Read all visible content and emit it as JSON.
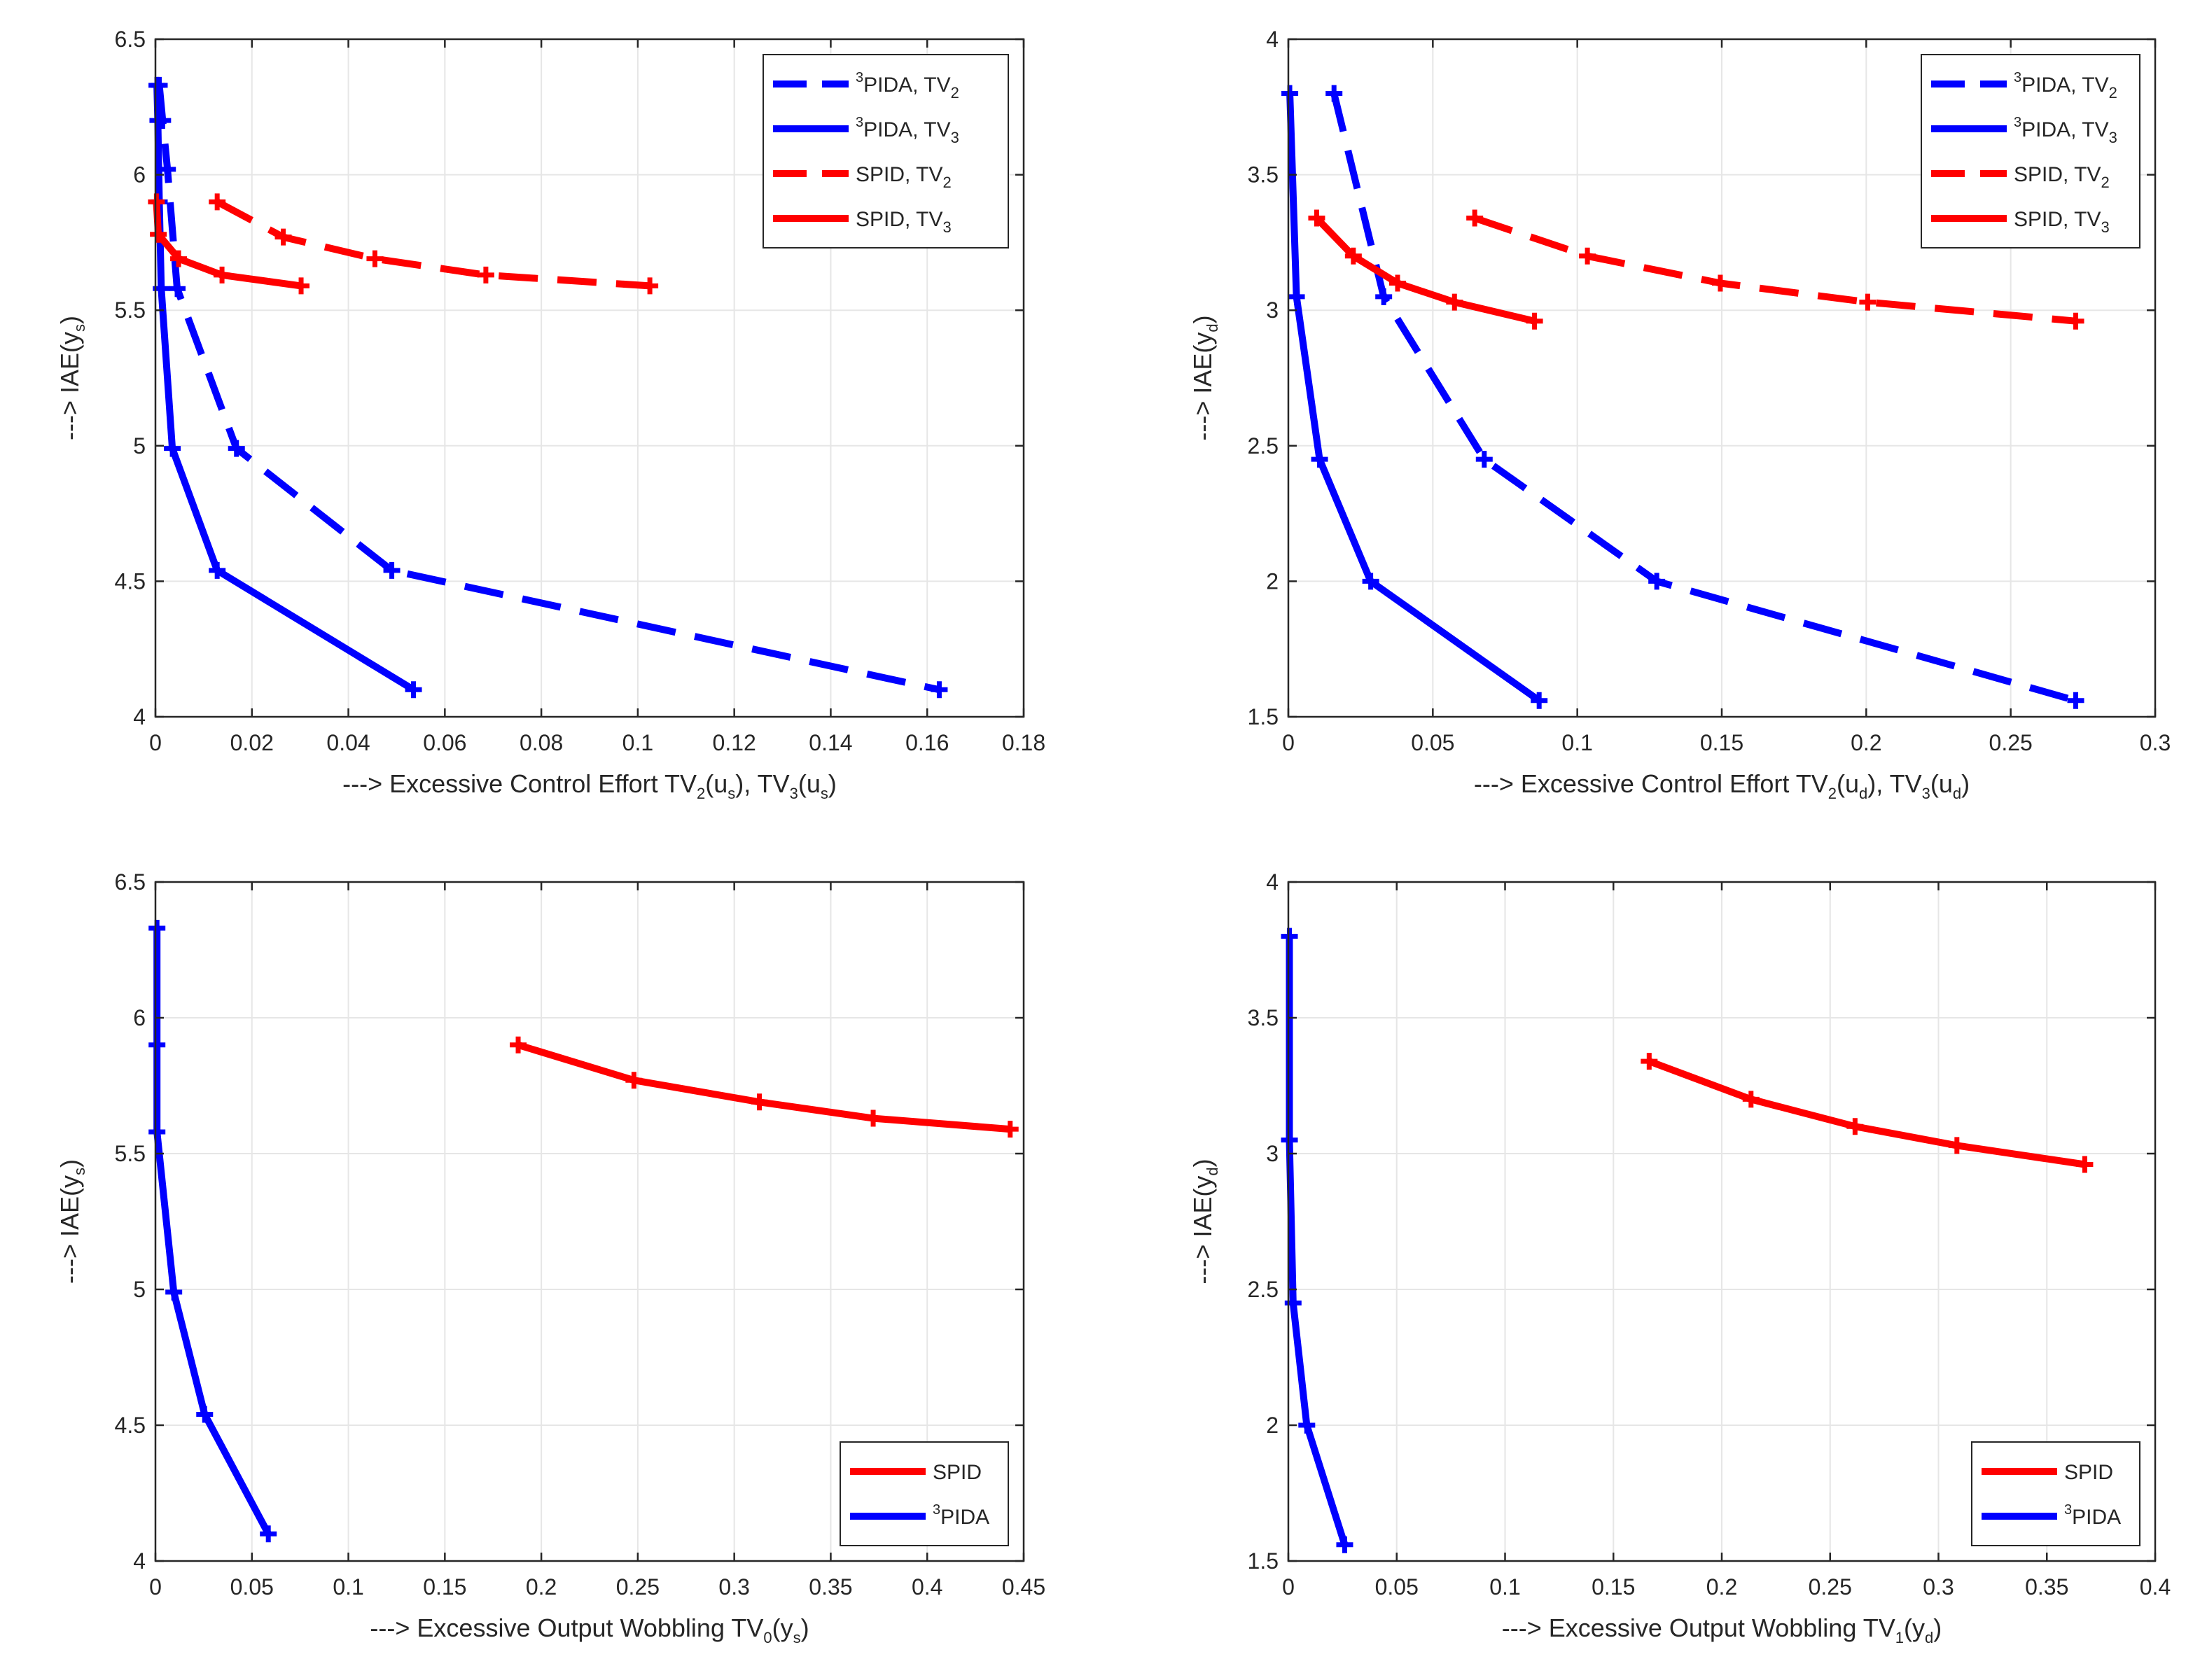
{
  "figure": {
    "colors": {
      "blue": "#0000ff",
      "red": "#ff0000",
      "grid": "#e6e6e6",
      "axis": "#262626"
    }
  },
  "chart_data": [
    {
      "id": "top-left",
      "type": "line",
      "xlabel": {
        "prefix": "---> Excessive Control Effort TV",
        "parts": [
          [
            "2",
            "sub"
          ],
          [
            "(u",
            "n"
          ],
          [
            "s",
            "sub"
          ],
          [
            "), TV",
            "n"
          ],
          [
            "3",
            "sub"
          ],
          [
            "(u",
            "n"
          ],
          [
            "s",
            "sub"
          ],
          [
            ")",
            "n"
          ]
        ]
      },
      "ylabel": {
        "prefix": "---> IAE(y",
        "parts": [
          [
            "s",
            "sub"
          ],
          [
            ")",
            "n"
          ]
        ]
      },
      "xlim": [
        0,
        0.18
      ],
      "ylim": [
        4,
        6.5
      ],
      "xticks": [
        0,
        0.02,
        0.04,
        0.06,
        0.08,
        0.1,
        0.12,
        0.14,
        0.16,
        0.18
      ],
      "xtick_labels": [
        "0",
        "0.02",
        "0.04",
        "0.06",
        "0.08",
        "0.1",
        "0.12",
        "0.14",
        "0.16",
        "0.18"
      ],
      "yticks": [
        4,
        4.5,
        5,
        5.5,
        6,
        6.5
      ],
      "ytick_labels": [
        "4",
        "4.5",
        "5",
        "5.5",
        "6",
        "6.5"
      ],
      "legend": "top-right",
      "series": [
        {
          "name": "3PIDA, TV2",
          "label": [
            [
              "3",
              "sup"
            ],
            [
              "PIDA, TV",
              "n"
            ],
            [
              "2",
              "sub"
            ]
          ],
          "color": "#0000ff",
          "dash": true,
          "x": [
            0.0008,
            0.0015,
            0.0025,
            0.0045,
            0.0168,
            0.049,
            0.1625
          ],
          "y": [
            6.33,
            6.2,
            6.02,
            5.58,
            4.99,
            4.54,
            4.1
          ]
        },
        {
          "name": "3PIDA, TV3",
          "label": [
            [
              "3",
              "sup"
            ],
            [
              "PIDA, TV",
              "n"
            ],
            [
              "3",
              "sub"
            ]
          ],
          "color": "#0000ff",
          "dash": false,
          "x": [
            0.0003,
            0.0005,
            0.0008,
            0.0012,
            0.0035,
            0.0128,
            0.0535
          ],
          "y": [
            6.33,
            6.2,
            5.9,
            5.58,
            4.99,
            4.54,
            4.1
          ]
        },
        {
          "name": "SPID, TV2",
          "label": [
            [
              "SPID, TV",
              "n"
            ],
            [
              "2",
              "sub"
            ]
          ],
          "color": "#ff0000",
          "dash": true,
          "x": [
            0.0128,
            0.0265,
            0.0455,
            0.0685,
            0.1025
          ],
          "y": [
            5.9,
            5.77,
            5.69,
            5.63,
            5.59
          ]
        },
        {
          "name": "SPID, TV3",
          "label": [
            [
              "SPID, TV",
              "n"
            ],
            [
              "3",
              "sub"
            ]
          ],
          "color": "#ff0000",
          "dash": false,
          "x": [
            0.0002,
            0.0006,
            0.0048,
            0.0138,
            0.0302
          ],
          "y": [
            5.9,
            5.78,
            5.69,
            5.63,
            5.59
          ]
        }
      ]
    },
    {
      "id": "top-right",
      "type": "line",
      "xlabel": {
        "prefix": "---> Excessive Control Effort TV",
        "parts": [
          [
            "2",
            "sub"
          ],
          [
            "(u",
            "n"
          ],
          [
            "d",
            "sub"
          ],
          [
            "), TV",
            "n"
          ],
          [
            "3",
            "sub"
          ],
          [
            "(u",
            "n"
          ],
          [
            "d",
            "sub"
          ],
          [
            ")",
            "n"
          ]
        ]
      },
      "ylabel": {
        "prefix": "---> IAE(y",
        "parts": [
          [
            "d",
            "sub"
          ],
          [
            ")",
            "n"
          ]
        ]
      },
      "xlim": [
        0,
        0.3
      ],
      "ylim": [
        1.5,
        4
      ],
      "xticks": [
        0,
        0.05,
        0.1,
        0.15,
        0.2,
        0.25,
        0.3
      ],
      "xtick_labels": [
        "0",
        "0.05",
        "0.1",
        "0.15",
        "0.2",
        "0.25",
        "0.3"
      ],
      "yticks": [
        1.5,
        2,
        2.5,
        3,
        3.5,
        4
      ],
      "ytick_labels": [
        "1.5",
        "2",
        "2.5",
        "3",
        "3.5",
        "4"
      ],
      "legend": "top-right",
      "series": [
        {
          "name": "3PIDA, TV2",
          "label": [
            [
              "3",
              "sup"
            ],
            [
              "PIDA, TV",
              "n"
            ],
            [
              "2",
              "sub"
            ]
          ],
          "color": "#0000ff",
          "dash": true,
          "x": [
            0.0158,
            0.033,
            0.0678,
            0.1275,
            0.2725
          ],
          "y": [
            3.8,
            3.05,
            2.45,
            2.0,
            1.56
          ]
        },
        {
          "name": "3PIDA, TV3",
          "label": [
            [
              "3",
              "sup"
            ],
            [
              "PIDA, TV",
              "n"
            ],
            [
              "3",
              "sub"
            ]
          ],
          "color": "#0000ff",
          "dash": false,
          "x": [
            0.0005,
            0.0028,
            0.0108,
            0.0285,
            0.0868
          ],
          "y": [
            3.8,
            3.05,
            2.45,
            2.0,
            1.56
          ]
        },
        {
          "name": "SPID, TV2",
          "label": [
            [
              "SPID, TV",
              "n"
            ],
            [
              "2",
              "sub"
            ]
          ],
          "color": "#ff0000",
          "dash": true,
          "x": [
            0.0645,
            0.1035,
            0.1495,
            0.2005,
            0.2725
          ],
          "y": [
            3.34,
            3.2,
            3.1,
            3.03,
            2.96
          ]
        },
        {
          "name": "SPID, TV3",
          "label": [
            [
              "SPID, TV",
              "n"
            ],
            [
              "3",
              "sub"
            ]
          ],
          "color": "#ff0000",
          "dash": false,
          "x": [
            0.0098,
            0.0225,
            0.0378,
            0.0575,
            0.0852
          ],
          "y": [
            3.34,
            3.2,
            3.1,
            3.03,
            2.96
          ]
        }
      ]
    },
    {
      "id": "bottom-left",
      "type": "line",
      "xlabel": {
        "prefix": "---> Excessive Output Wobbling TV",
        "parts": [
          [
            "0",
            "sub"
          ],
          [
            "(y",
            "n"
          ],
          [
            "s",
            "sub"
          ],
          [
            ")",
            "n"
          ]
        ]
      },
      "ylabel": {
        "prefix": "---> IAE(y",
        "parts": [
          [
            "s",
            "sub"
          ],
          [
            ")",
            "n"
          ]
        ]
      },
      "xlim": [
        0,
        0.45
      ],
      "ylim": [
        4,
        6.5
      ],
      "xticks": [
        0,
        0.05,
        0.1,
        0.15,
        0.2,
        0.25,
        0.3,
        0.35,
        0.4,
        0.45
      ],
      "xtick_labels": [
        "0",
        "0.05",
        "0.1",
        "0.15",
        "0.2",
        "0.25",
        "0.3",
        "0.35",
        "0.4",
        "0.45"
      ],
      "yticks": [
        4,
        4.5,
        5,
        5.5,
        6,
        6.5
      ],
      "ytick_labels": [
        "4",
        "4.5",
        "5",
        "5.5",
        "6",
        "6.5"
      ],
      "legend": "bottom-right",
      "series": [
        {
          "name": "SPID",
          "label": [
            [
              "SPID",
              "n"
            ]
          ],
          "color": "#ff0000",
          "dash": false,
          "x": [
            0.188,
            0.248,
            0.313,
            0.372,
            0.443
          ],
          "y": [
            5.9,
            5.77,
            5.69,
            5.63,
            5.59
          ]
        },
        {
          "name": "3PIDA",
          "label": [
            [
              "3",
              "sup"
            ],
            [
              "PIDA",
              "n"
            ]
          ],
          "color": "#0000ff",
          "dash": false,
          "x": [
            0.0008,
            0.0008,
            0.0008,
            0.0095,
            0.0255,
            0.0585
          ],
          "y": [
            6.33,
            5.9,
            5.58,
            4.99,
            4.54,
            4.1
          ]
        }
      ]
    },
    {
      "id": "bottom-right",
      "type": "line",
      "xlabel": {
        "prefix": "---> Excessive Output Wobbling TV",
        "parts": [
          [
            "1",
            "sub"
          ],
          [
            "(y",
            "n"
          ],
          [
            "d",
            "sub"
          ],
          [
            ")",
            "n"
          ]
        ]
      },
      "ylabel": {
        "prefix": "---> IAE(y",
        "parts": [
          [
            "d",
            "sub"
          ],
          [
            ")",
            "n"
          ]
        ]
      },
      "xlim": [
        0,
        0.4
      ],
      "ylim": [
        1.5,
        4
      ],
      "xticks": [
        0,
        0.05,
        0.1,
        0.15,
        0.2,
        0.25,
        0.3,
        0.35,
        0.4
      ],
      "xtick_labels": [
        "0",
        "0.05",
        "0.1",
        "0.15",
        "0.2",
        "0.25",
        "0.3",
        "0.35",
        "0.4"
      ],
      "yticks": [
        1.5,
        2,
        2.5,
        3,
        3.5,
        4
      ],
      "ytick_labels": [
        "1.5",
        "2",
        "2.5",
        "3",
        "3.5",
        "4"
      ],
      "legend": "bottom-right",
      "series": [
        {
          "name": "SPID",
          "label": [
            [
              "SPID",
              "n"
            ]
          ],
          "color": "#ff0000",
          "dash": false,
          "x": [
            0.1665,
            0.2135,
            0.2615,
            0.3085,
            0.3675
          ],
          "y": [
            3.34,
            3.2,
            3.1,
            3.03,
            2.96
          ]
        },
        {
          "name": "3PIDA",
          "label": [
            [
              "3",
              "sup"
            ],
            [
              "PIDA",
              "n"
            ]
          ],
          "color": "#0000ff",
          "dash": false,
          "x": [
            0.0005,
            0.0005,
            0.0022,
            0.0085,
            0.026
          ],
          "y": [
            3.8,
            3.05,
            2.45,
            2.0,
            1.56
          ]
        }
      ]
    }
  ]
}
